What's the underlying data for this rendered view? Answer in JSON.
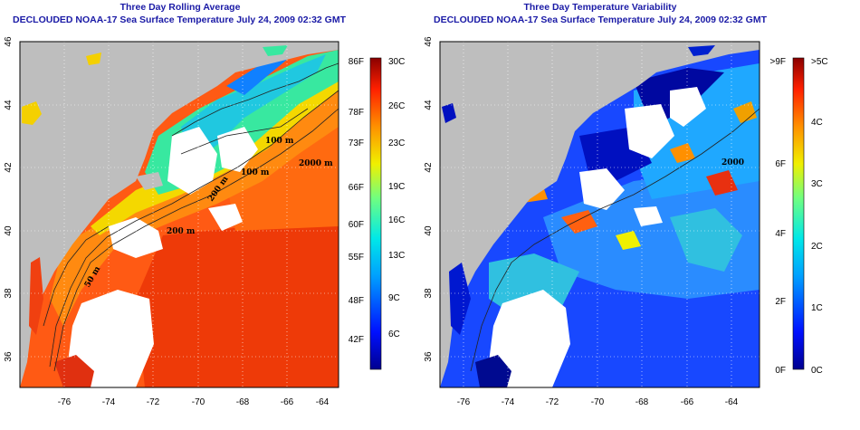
{
  "left": {
    "title": "Three Day Rolling Average",
    "subtitle": "DECLOUDED NOAA-17 Sea Surface Temperature July 24, 2009 02:32 GMT",
    "cb_f": [
      "86F",
      "78F",
      "73F",
      "66F",
      "60F",
      "55F",
      "48F",
      "42F"
    ],
    "cb_c": [
      "30C",
      "26C",
      "23C",
      "19C",
      "16C",
      "13C",
      "9C",
      "6C"
    ],
    "isobath_labels": [
      "100 m",
      "100 m",
      "2000 m",
      "200 m",
      "200 m",
      "50 m"
    ]
  },
  "right": {
    "title": "Three Day Temperature Variability",
    "subtitle": "DECLOUDED NOAA-17 Sea Surface Temperature July 24, 2009 02:32 GMT",
    "cb_f": [
      ">9F",
      "6F",
      "4F",
      "2F",
      "0F"
    ],
    "cb_c": [
      ">5C",
      "4C",
      "3C",
      "2C",
      "1C",
      "0C"
    ],
    "isobath_labels": [
      "2000"
    ]
  },
  "axes": {
    "lon": [
      "-76",
      "-74",
      "-72",
      "-70",
      "-68",
      "-66",
      "-64"
    ],
    "lat": [
      "46",
      "44",
      "42",
      "40",
      "38",
      "36"
    ]
  },
  "colors": {
    "land": "#bebebe",
    "title": "#1a1aa6"
  }
}
